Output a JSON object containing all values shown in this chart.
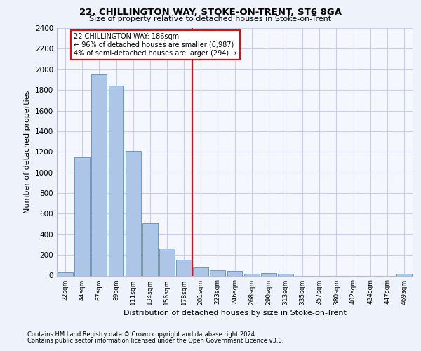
{
  "title": "22, CHILLINGTON WAY, STOKE-ON-TRENT, ST6 8GA",
  "subtitle": "Size of property relative to detached houses in Stoke-on-Trent",
  "xlabel": "Distribution of detached houses by size in Stoke-on-Trent",
  "ylabel": "Number of detached properties",
  "categories": [
    "22sqm",
    "44sqm",
    "67sqm",
    "89sqm",
    "111sqm",
    "134sqm",
    "156sqm",
    "178sqm",
    "201sqm",
    "223sqm",
    "246sqm",
    "268sqm",
    "290sqm",
    "313sqm",
    "335sqm",
    "357sqm",
    "380sqm",
    "402sqm",
    "424sqm",
    "447sqm",
    "469sqm"
  ],
  "values": [
    30,
    1150,
    1950,
    1840,
    1210,
    510,
    265,
    155,
    80,
    50,
    45,
    20,
    25,
    15,
    0,
    0,
    0,
    0,
    0,
    0,
    20
  ],
  "bar_color": "#adc6e8",
  "bar_edge_color": "#6699cc",
  "vline_index": 7.5,
  "vline_color": "red",
  "annotation_text": "22 CHILLINGTON WAY: 186sqm\n← 96% of detached houses are smaller (6,987)\n4% of semi-detached houses are larger (294) →",
  "ylim": [
    0,
    2400
  ],
  "yticks": [
    0,
    200,
    400,
    600,
    800,
    1000,
    1200,
    1400,
    1600,
    1800,
    2000,
    2200,
    2400
  ],
  "footnote1": "Contains HM Land Registry data © Crown copyright and database right 2024.",
  "footnote2": "Contains public sector information licensed under the Open Government Licence v3.0.",
  "bg_color": "#edf2fb",
  "plot_bg_color": "#f4f7fd",
  "grid_color": "#c8d0e8"
}
